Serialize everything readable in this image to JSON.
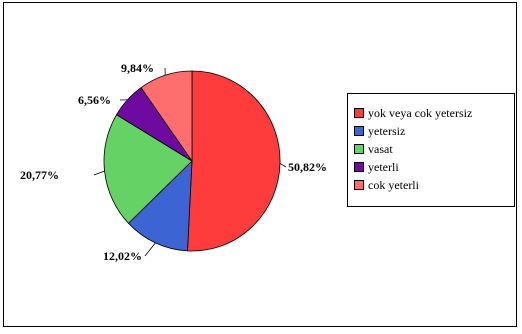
{
  "chart_data": {
    "type": "pie",
    "title": "",
    "slices": [
      {
        "label": "yok veya cok yetersiz",
        "value": 50.82,
        "value_label": "50,82%",
        "color": "#ff3c3c"
      },
      {
        "label": "yetersiz",
        "value": 12.02,
        "value_label": "12,02%",
        "color": "#3c64d2"
      },
      {
        "label": "vasat",
        "value": 20.77,
        "value_label": "20,77%",
        "color": "#64d264"
      },
      {
        "label": "yeterli",
        "value": 6.56,
        "value_label": "6,56%",
        "color": "#6e0aa0"
      },
      {
        "label": "cok yeterli",
        "value": 9.84,
        "value_label": "9,84%",
        "color": "#ff6e6e"
      }
    ],
    "legend_position": "right"
  }
}
